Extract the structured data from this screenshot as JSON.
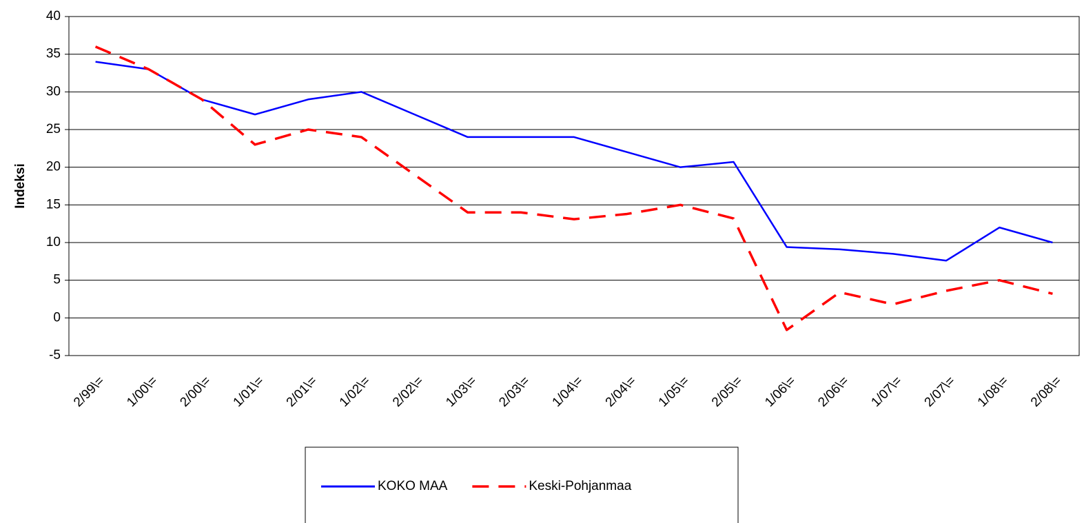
{
  "chart_data": {
    "type": "line",
    "y_label": "Indeksi",
    "categories": [
      "2/99\\=",
      "1/00\\=",
      "2/00\\=",
      "1/01\\=",
      "2/01\\=",
      "1/02\\=",
      "2/02\\=",
      "1/03\\=",
      "2/03\\=",
      "1/04\\=",
      "2/04\\=",
      "1/05\\=",
      "2/05\\=",
      "1/06\\=",
      "2/06\\=",
      "1/07\\=",
      "2/07\\=",
      "1/08\\=",
      "2/08\\="
    ],
    "series": [
      {
        "name": "KOKO MAA",
        "color": "#0000ff",
        "dashed": false,
        "values": [
          34,
          33,
          29,
          27,
          29,
          30,
          27,
          24,
          24,
          24,
          22,
          20,
          20.7,
          9.4,
          9.1,
          8.5,
          7.6,
          12,
          10
        ]
      },
      {
        "name": "Keski-Pohjanmaa",
        "color": "#ff0000",
        "dashed": true,
        "values": [
          36,
          33,
          29,
          23,
          25,
          24,
          19,
          14,
          14,
          13.1,
          13.8,
          15,
          13.2,
          -1.6,
          3.4,
          1.8,
          3.6,
          5,
          3.2
        ]
      }
    ],
    "ylim": [
      -5,
      40
    ],
    "yticks": [
      -5,
      0,
      5,
      10,
      15,
      20,
      25,
      30,
      35,
      40
    ],
    "grid": true
  }
}
